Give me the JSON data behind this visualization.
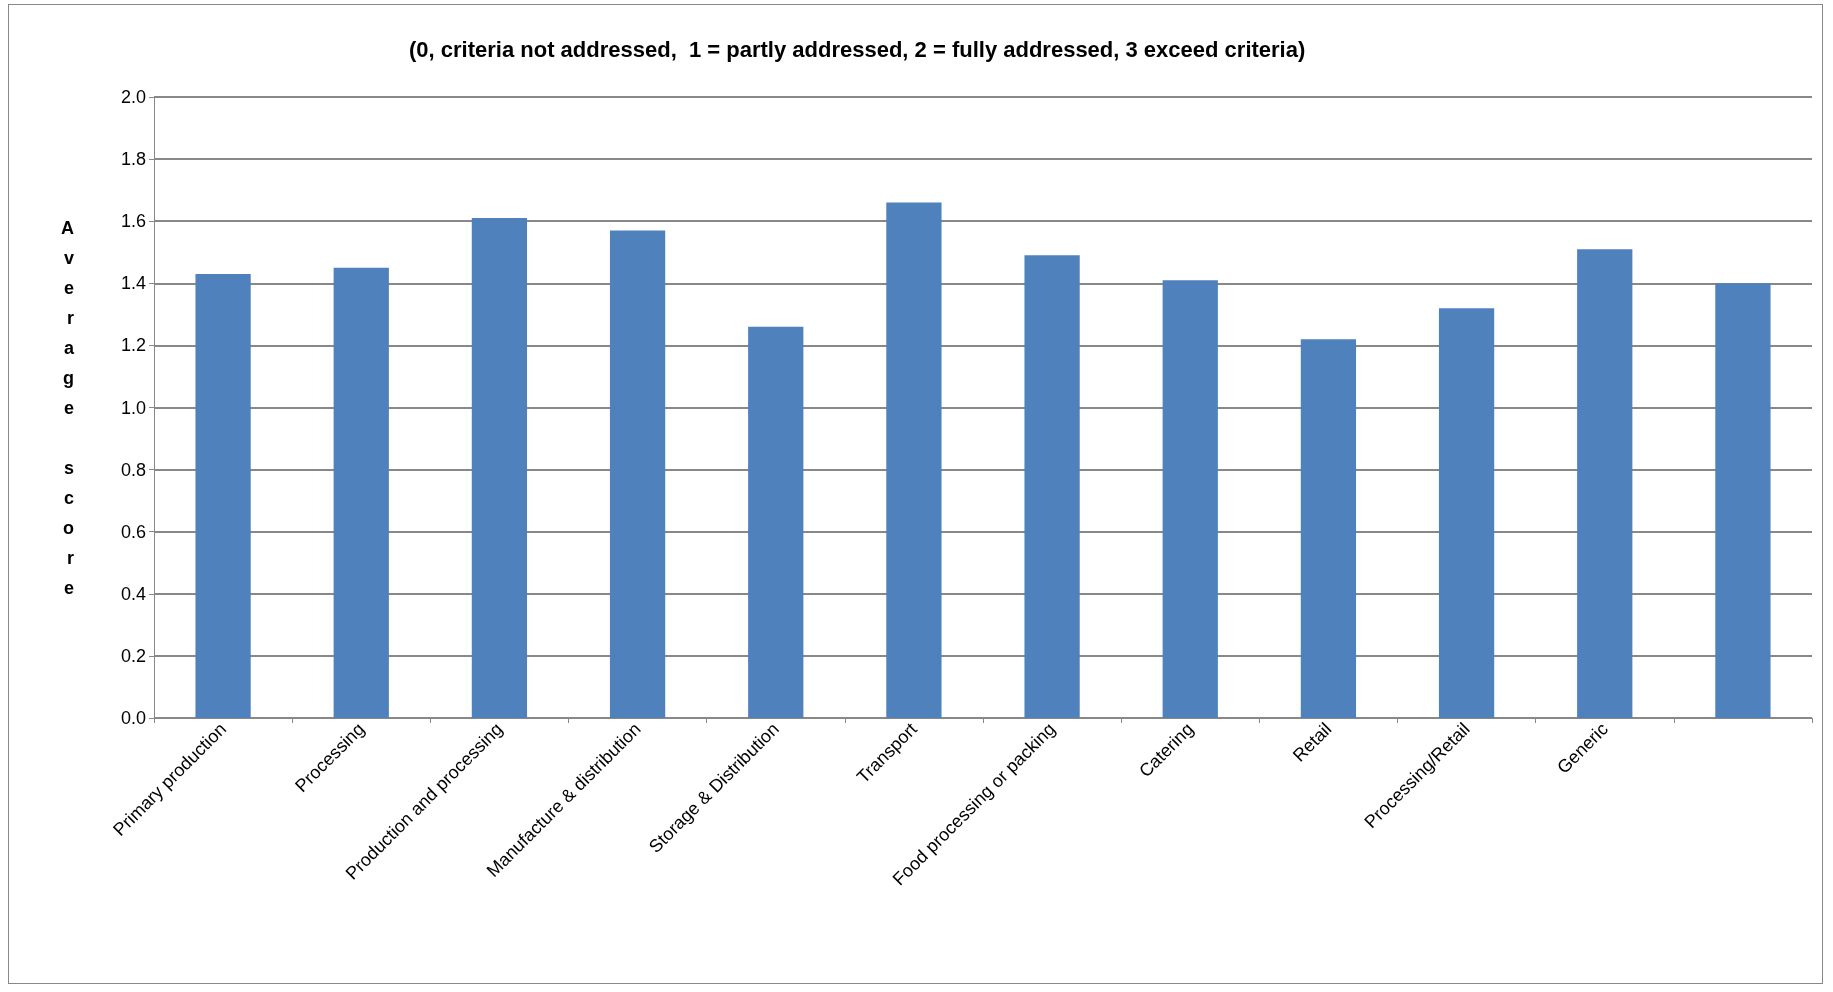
{
  "chart_data": {
    "type": "bar",
    "title": "(0, criteria not addressed,  1 = partly addressed, 2 = fully addressed, 3 exceed criteria)",
    "ylabel": "Average score",
    "categories": [
      "Primary production",
      "Processing",
      "Production and processing",
      "Manufacture & distribution",
      "Storage & Distribution",
      "Transport",
      "Food processing or packing",
      "Catering",
      "Retail",
      "Processing/Retail",
      "Generic",
      null
    ],
    "values": [
      1.43,
      1.45,
      1.61,
      1.57,
      1.26,
      1.66,
      1.49,
      1.41,
      1.22,
      1.32,
      1.51,
      1.4
    ],
    "color": "#4f81bd",
    "ylim": [
      0,
      2
    ],
    "yticks": [
      {
        "value": 0,
        "label": "0.0"
      },
      0.2,
      0.4,
      0.6,
      0.8,
      {
        "value": 1,
        "label": "1.0"
      },
      1.2,
      1.4,
      1.6,
      1.8,
      {
        "value": 2,
        "label": "2.0"
      }
    ],
    "grid": "y"
  }
}
